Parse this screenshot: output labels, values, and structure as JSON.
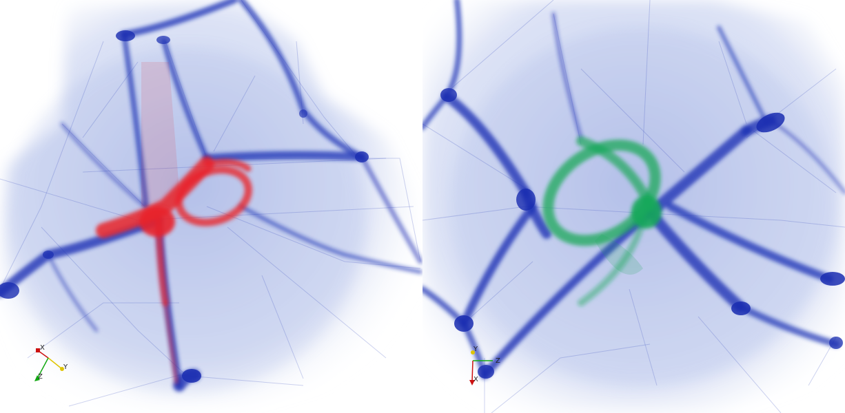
{
  "panels": [
    {
      "id": "left",
      "highlight_color": "#e8242c",
      "web_color": "#1a2fb8",
      "axes": {
        "x_label": "X",
        "y_label": "Y",
        "z_label": "Z",
        "x_color": "#cc1111",
        "y_color": "#e0c400",
        "z_color": "#11a811"
      }
    },
    {
      "id": "right",
      "highlight_color": "#19a85a",
      "web_color": "#1a2fb8",
      "axes": {
        "x_label": "X",
        "y_label": "Y",
        "z_label": "Z",
        "x_color": "#cc1111",
        "y_color": "#e0c400",
        "z_color": "#11a811"
      }
    }
  ]
}
